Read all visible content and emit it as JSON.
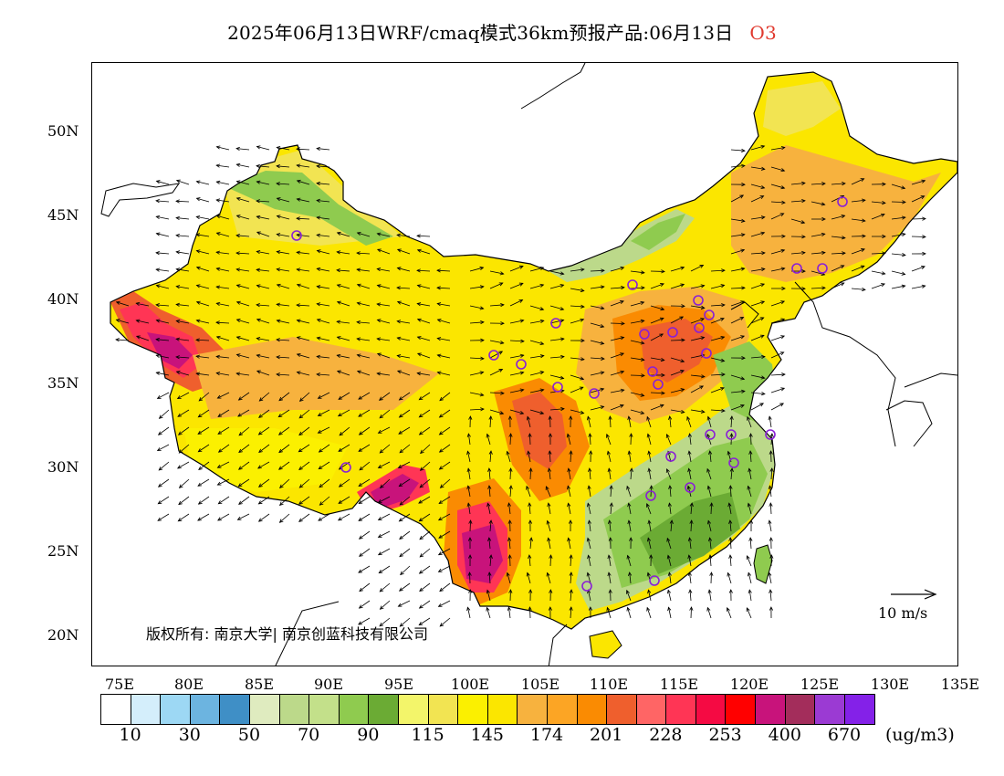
{
  "title": {
    "main": "2025年06月13日WRF/cmaq模式36km预报产品:06月13日",
    "species": "O3",
    "species_color": "#e0392e"
  },
  "axes": {
    "y_labels": [
      "50N",
      "45N",
      "40N",
      "35N",
      "30N",
      "25N",
      "20N"
    ],
    "x_labels": [
      "75E",
      "80E",
      "85E",
      "90E",
      "95E",
      "100E",
      "105E",
      "110E",
      "115E",
      "120E",
      "125E",
      "130E",
      "135E"
    ]
  },
  "copyright": "版权所有: 南京大学| 南京创蓝科技有限公司",
  "scale_arrow_label": "10 m/s",
  "legend": {
    "colors": [
      "#ffffff",
      "#d4eefb",
      "#9dd8f4",
      "#6cb4e0",
      "#3f8fc6",
      "#dfebbf",
      "#bcd98a",
      "#c3e08a",
      "#8fcb4f",
      "#6bab34",
      "#f3f56a",
      "#f2e452",
      "#fbf000",
      "#fbe600",
      "#f7b23e",
      "#fca524",
      "#fa8b02",
      "#ef5f2d",
      "#ff6565",
      "#ff3555",
      "#f50a43",
      "#ff0000",
      "#c8137b",
      "#a32d5b",
      "#9b3ad3",
      "#8421e8"
    ],
    "labels": [
      "10",
      "30",
      "50",
      "70",
      "90",
      "115",
      "145",
      "174",
      "201",
      "228",
      "253",
      "400",
      "670"
    ],
    "unit": "(ug/m3)"
  },
  "map_features": {
    "city_markers": 28,
    "wind_vectors": "shown"
  }
}
